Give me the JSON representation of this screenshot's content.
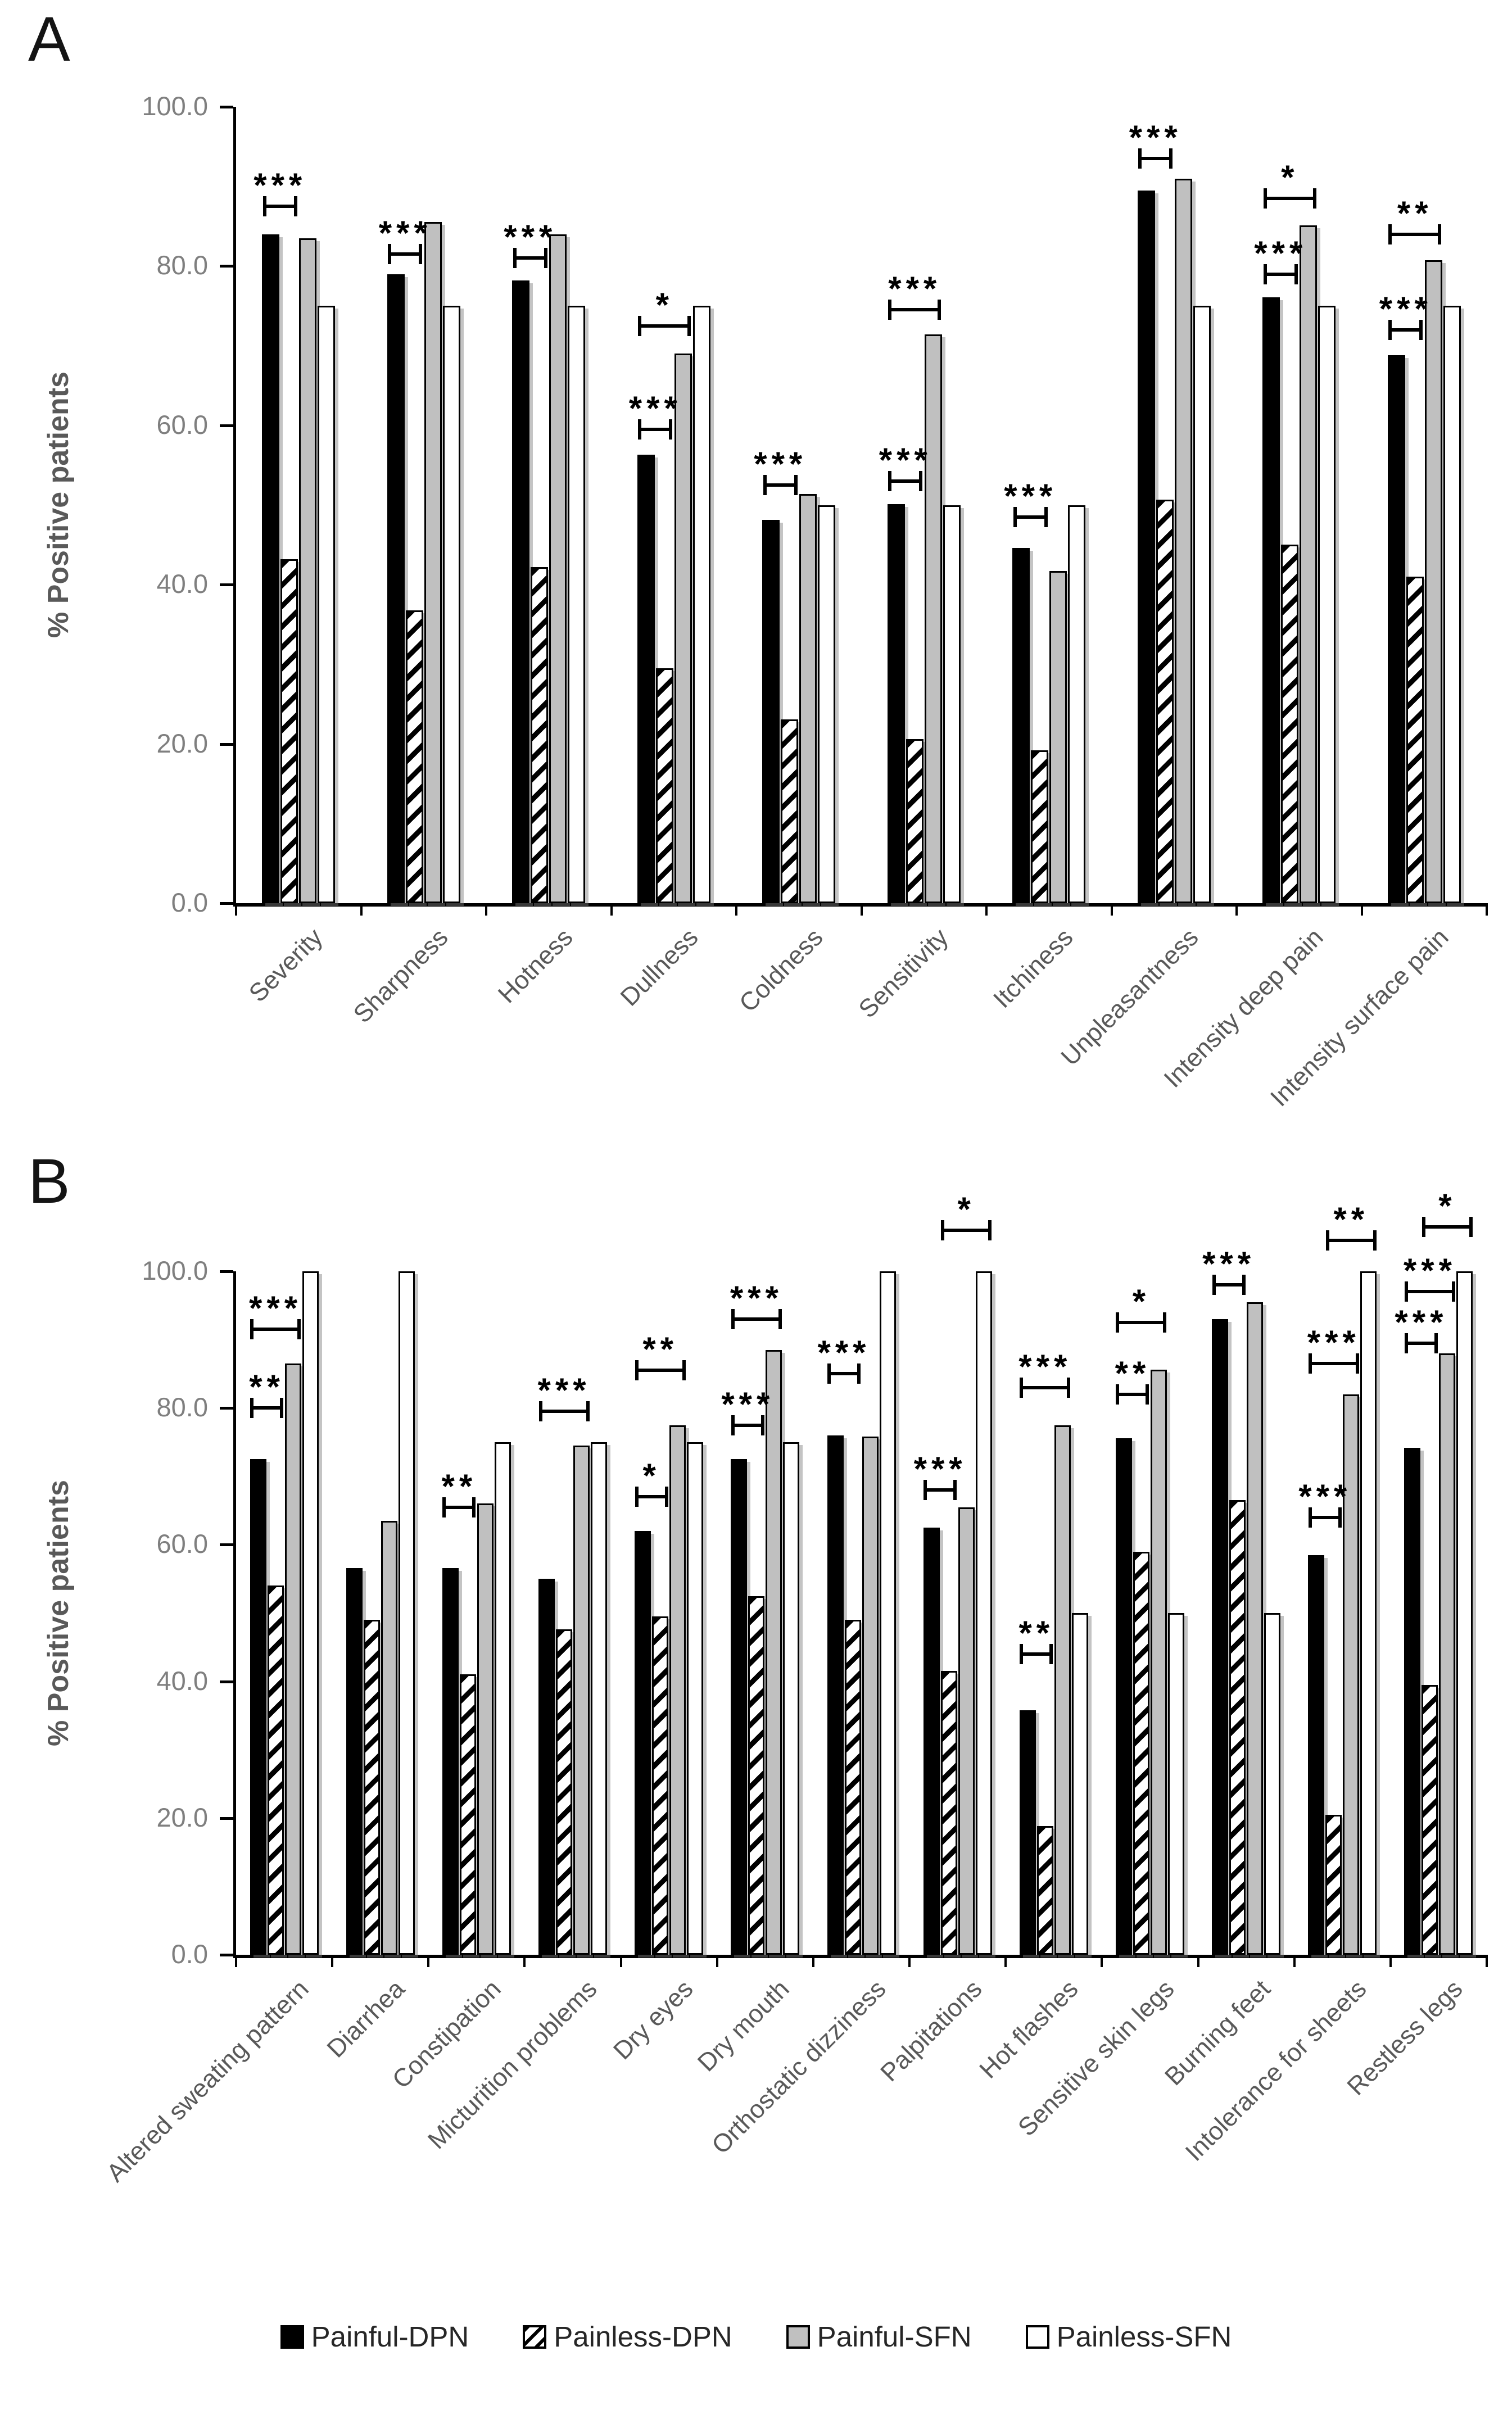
{
  "figure": {
    "y_axis_title": "% Positive patients",
    "panels": [
      {
        "letter": "A"
      },
      {
        "letter": "B"
      }
    ]
  },
  "legend": {
    "items": [
      {
        "label": "Painful-DPN",
        "swatch": "black"
      },
      {
        "label": "Painless-DPN",
        "swatch": "hatch"
      },
      {
        "label": "Painful-SFN",
        "swatch": "gray"
      },
      {
        "label": "Painless-SFN",
        "swatch": "white"
      }
    ]
  },
  "colors": {
    "bar_black": "#000000",
    "bar_gray": "#c0c0c0",
    "bar_white": "#ffffff",
    "hatch_stripe": "#000000",
    "axis_line": "#000000",
    "tick_label_text": "#7f7f7f",
    "category_label_text": "#595959",
    "legend_text": "#262626"
  },
  "chart_data": [
    {
      "panel": "A",
      "type": "bar",
      "title": "",
      "xlabel": "",
      "ylabel": "% Positive patients",
      "ylim": [
        0,
        100
      ],
      "grid": "none",
      "legend_position": "shared-bottom",
      "yticks": [
        {
          "value": 0,
          "label": "0.0"
        },
        {
          "value": 20,
          "label": "20.0"
        },
        {
          "value": 40,
          "label": "40.0"
        },
        {
          "value": 60,
          "label": "60.0"
        },
        {
          "value": 80,
          "label": "80.0"
        },
        {
          "value": 100,
          "label": "100.0"
        }
      ],
      "categories": [
        "Severity",
        "Sharpness",
        "Hotness",
        "Dullness",
        "Coldness",
        "Sensitivity",
        "Itchiness",
        "Unpleasantness",
        "Intensity deep pain",
        "Intensity surface pain"
      ],
      "series": [
        {
          "name": "Painful-DPN",
          "fill": "black",
          "values": [
            84.0,
            79.0,
            78.2,
            56.3,
            48.1,
            50.1,
            44.6,
            89.5,
            76.1,
            68.8
          ]
        },
        {
          "name": "Painless-DPN",
          "fill": "hatch",
          "values": [
            43.2,
            36.8,
            42.2,
            29.5,
            23.1,
            20.6,
            19.2,
            50.7,
            45.0,
            41.0
          ]
        },
        {
          "name": "Painful-SFN",
          "fill": "gray",
          "values": [
            83.5,
            85.5,
            84.0,
            69.0,
            51.4,
            71.4,
            41.7,
            91.0,
            85.1,
            80.7
          ]
        },
        {
          "name": "Painless-SFN",
          "fill": "white",
          "values": [
            75.0,
            75.0,
            75.0,
            75.0,
            50.0,
            50.0,
            50.0,
            75.0,
            75.0,
            75.0
          ]
        }
      ],
      "significance": [
        {
          "category_index": 0,
          "bars": [
            0,
            1
          ],
          "label": "***",
          "height": 87.5
        },
        {
          "category_index": 1,
          "bars": [
            0,
            1
          ],
          "label": "***",
          "height": 81.5
        },
        {
          "category_index": 2,
          "bars": [
            0,
            1
          ],
          "label": "***",
          "height": 81.0
        },
        {
          "category_index": 3,
          "bars": [
            0,
            1
          ],
          "label": "***",
          "height": 59.5
        },
        {
          "category_index": 3,
          "bars": [
            0,
            2
          ],
          "label": "*",
          "height": 72.5
        },
        {
          "category_index": 4,
          "bars": [
            0,
            1
          ],
          "label": "***",
          "height": 52.5
        },
        {
          "category_index": 5,
          "bars": [
            0,
            1
          ],
          "label": "***",
          "height": 53.0
        },
        {
          "category_index": 5,
          "bars": [
            0,
            2
          ],
          "label": "***",
          "height": 74.5
        },
        {
          "category_index": 6,
          "bars": [
            0,
            1
          ],
          "label": "***",
          "height": 48.5
        },
        {
          "category_index": 7,
          "bars": [
            0,
            1
          ],
          "label": "***",
          "height": 93.5
        },
        {
          "category_index": 8,
          "bars": [
            0,
            1
          ],
          "label": "***",
          "height": 79.0
        },
        {
          "category_index": 8,
          "bars": [
            0,
            2
          ],
          "label": "*",
          "height": 88.5
        },
        {
          "category_index": 9,
          "bars": [
            0,
            1
          ],
          "label": "***",
          "height": 72.0
        },
        {
          "category_index": 9,
          "bars": [
            0,
            2
          ],
          "label": "**",
          "height": 84.0
        }
      ]
    },
    {
      "panel": "B",
      "type": "bar",
      "title": "",
      "xlabel": "",
      "ylabel": "% Positive patients",
      "ylim": [
        0,
        100
      ],
      "grid": "none",
      "legend_position": "shared-bottom",
      "yticks": [
        {
          "value": 0,
          "label": "0.0"
        },
        {
          "value": 20,
          "label": "20.0"
        },
        {
          "value": 40,
          "label": "40.0"
        },
        {
          "value": 60,
          "label": "60.0"
        },
        {
          "value": 80,
          "label": "80.0"
        },
        {
          "value": 100,
          "label": "100.0"
        }
      ],
      "categories": [
        "Altered sweating pattern",
        "Diarrhea",
        "Constipation",
        "Micturition problems",
        "Dry eyes",
        "Dry mouth",
        "Orthostatic dizziness",
        "Palpitations",
        "Hot flashes",
        "Sensitive skin legs",
        "Burning feet",
        "Intolerance for sheets",
        "Restless legs"
      ],
      "series": [
        {
          "name": "Painful-DPN",
          "fill": "black",
          "values": [
            72.5,
            56.6,
            56.6,
            55.0,
            62.0,
            72.5,
            76.0,
            62.5,
            35.8,
            75.6,
            93.0,
            58.5,
            74.2
          ]
        },
        {
          "name": "Painless-DPN",
          "fill": "hatch",
          "values": [
            54.0,
            49.0,
            41.0,
            47.6,
            49.5,
            52.5,
            49.0,
            41.5,
            18.8,
            59.0,
            66.5,
            20.5,
            39.5
          ]
        },
        {
          "name": "Painful-SFN",
          "fill": "gray",
          "values": [
            86.5,
            63.5,
            66.0,
            74.5,
            77.5,
            88.5,
            75.8,
            65.5,
            77.5,
            85.6,
            95.5,
            82.0,
            88.0
          ]
        },
        {
          "name": "Painless-SFN",
          "fill": "white",
          "values": [
            100.0,
            100.0,
            75.0,
            75.0,
            75.0,
            75.0,
            100.0,
            100.0,
            50.0,
            50.0,
            50.0,
            100.0,
            100.0
          ]
        }
      ],
      "significance": [
        {
          "category_index": 0,
          "bars": [
            0,
            1
          ],
          "label": "**",
          "height": 80.0
        },
        {
          "category_index": 0,
          "bars": [
            0,
            2
          ],
          "label": "***",
          "height": 91.5
        },
        {
          "category_index": 2,
          "bars": [
            0,
            1
          ],
          "label": "**",
          "height": 65.5
        },
        {
          "category_index": 3,
          "bars": [
            0,
            2
          ],
          "label": "***",
          "height": 79.5
        },
        {
          "category_index": 4,
          "bars": [
            0,
            1
          ],
          "label": "*",
          "height": 67.0
        },
        {
          "category_index": 4,
          "bars": [
            0,
            2
          ],
          "label": "**",
          "height": 85.5
        },
        {
          "category_index": 5,
          "bars": [
            0,
            1
          ],
          "label": "***",
          "height": 77.5
        },
        {
          "category_index": 5,
          "bars": [
            0,
            2
          ],
          "label": "***",
          "height": 93.0
        },
        {
          "category_index": 6,
          "bars": [
            0,
            1
          ],
          "label": "***",
          "height": 85.0
        },
        {
          "category_index": 7,
          "bars": [
            0,
            1
          ],
          "label": "***",
          "height": 68.0
        },
        {
          "category_index": 7,
          "bars": [
            1,
            3
          ],
          "label": "*",
          "height": 106.0
        },
        {
          "category_index": 8,
          "bars": [
            0,
            1
          ],
          "label": "**",
          "height": 44.0
        },
        {
          "category_index": 8,
          "bars": [
            0,
            2
          ],
          "label": "***",
          "height": 83.0
        },
        {
          "category_index": 9,
          "bars": [
            0,
            1
          ],
          "label": "**",
          "height": 82.0
        },
        {
          "category_index": 9,
          "bars": [
            0,
            2
          ],
          "label": "*",
          "height": 92.5
        },
        {
          "category_index": 10,
          "bars": [
            0,
            1
          ],
          "label": "***",
          "height": 98.0
        },
        {
          "category_index": 11,
          "bars": [
            0,
            1
          ],
          "label": "***",
          "height": 64.0
        },
        {
          "category_index": 11,
          "bars": [
            0,
            2
          ],
          "label": "***",
          "height": 86.5
        },
        {
          "category_index": 11,
          "bars": [
            1,
            3
          ],
          "label": "**",
          "height": 104.5
        },
        {
          "category_index": 12,
          "bars": [
            0,
            1
          ],
          "label": "***",
          "height": 89.5
        },
        {
          "category_index": 12,
          "bars": [
            0,
            2
          ],
          "label": "***",
          "height": 97.0
        },
        {
          "category_index": 12,
          "bars": [
            1,
            3
          ],
          "label": "*",
          "height": 106.5
        }
      ]
    }
  ]
}
